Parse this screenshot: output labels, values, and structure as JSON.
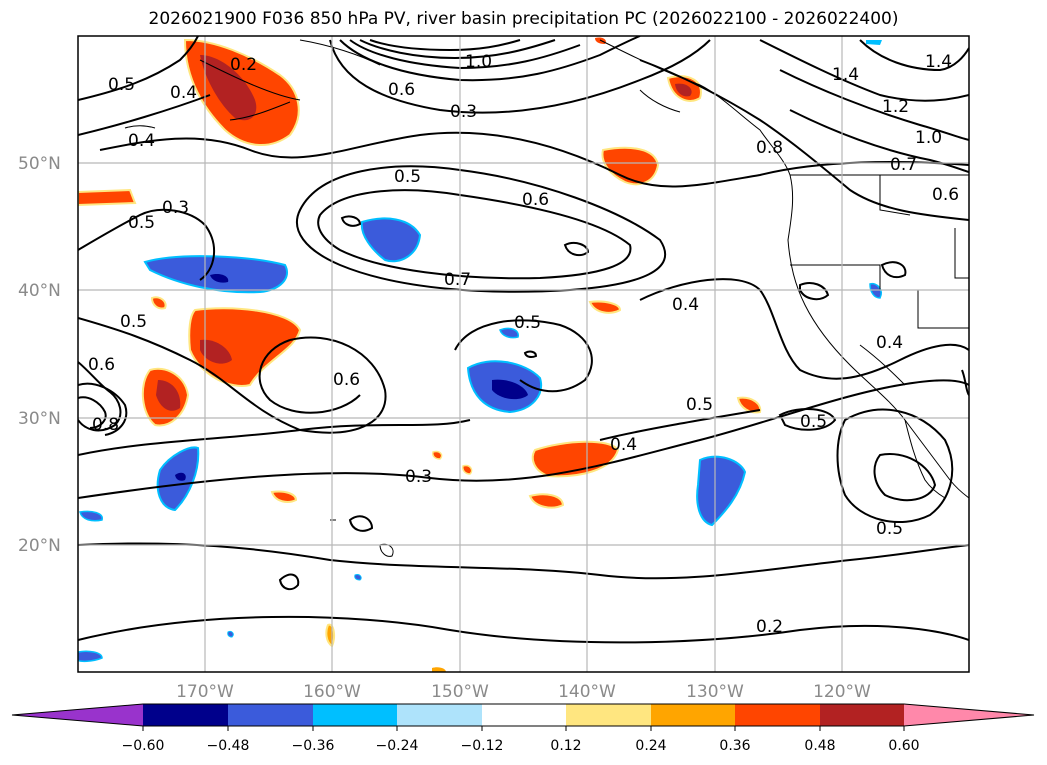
{
  "title": "2026021900 F036 850 hPa PV, river basin precipitation PC (2026022100 - 2026022400)",
  "map": {
    "lat_labels": [
      "50°N",
      "40°N",
      "30°N",
      "20°N"
    ],
    "lon_labels": [
      "170°W",
      "160°W",
      "150°W",
      "140°W",
      "130°W",
      "120°W"
    ]
  },
  "contour_labels": [
    {
      "text": "0.5"
    },
    {
      "text": "0.2"
    },
    {
      "text": "0.4"
    },
    {
      "text": "0.4"
    },
    {
      "text": "0.3"
    },
    {
      "text": "0.5"
    },
    {
      "text": "0.6"
    },
    {
      "text": "0.5"
    },
    {
      "text": "0.3"
    },
    {
      "text": "0.6"
    },
    {
      "text": "0.7"
    },
    {
      "text": "1.4"
    },
    {
      "text": "1.4"
    },
    {
      "text": "1.2"
    },
    {
      "text": "1.0"
    },
    {
      "text": "0.7"
    },
    {
      "text": "0.6"
    },
    {
      "text": "0.8"
    },
    {
      "text": "0.5"
    },
    {
      "text": "0.6"
    },
    {
      "text": "0.8"
    },
    {
      "text": "0.6"
    },
    {
      "text": "0.5"
    },
    {
      "text": "0.4"
    },
    {
      "text": "0.4"
    },
    {
      "text": "0.5"
    },
    {
      "text": "0.5"
    },
    {
      "text": "0.4"
    },
    {
      "text": "0.3"
    },
    {
      "text": "0.5"
    },
    {
      "text": "0.2"
    },
    {
      "text": "1.0"
    }
  ],
  "colorbar": {
    "colors": [
      "#9933cc",
      "#00008b",
      "#3b5bdb",
      "#00bfff",
      "#aee3fb",
      "#ffffff",
      "#ffe680",
      "#ffa500",
      "#ff4500",
      "#b22222",
      "#ff88aa"
    ],
    "tick_labels": [
      "−0.60",
      "−0.48",
      "−0.36",
      "−0.24",
      "−0.12",
      "0.12",
      "0.24",
      "0.36",
      "0.48",
      "0.60"
    ]
  },
  "shading_colors": {
    "neg_strong": "#00008b",
    "neg_mid": "#3b5bdb",
    "neg_light": "#00bfff",
    "pos_light": "#ffe680",
    "pos_mid": "#ffa500",
    "pos_strong": "#ff4500",
    "pos_max": "#b22222"
  }
}
